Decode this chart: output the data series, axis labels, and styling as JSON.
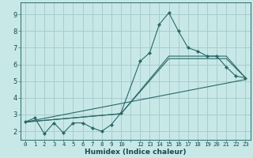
{
  "title": "",
  "xlabel": "Humidex (Indice chaleur)",
  "bg_color": "#c8e8e8",
  "grid_color": "#a8cccc",
  "line_color": "#2a6868",
  "marker_color": "#2a6868",
  "xlim": [
    -0.5,
    23.5
  ],
  "ylim": [
    1.5,
    9.7
  ],
  "xtick_labels": [
    "0",
    "1",
    "2",
    "3",
    "4",
    "5",
    "6",
    "7",
    "8",
    "9",
    "10",
    "1213141516171819202122 23"
  ],
  "ytick_vals": [
    2,
    3,
    4,
    5,
    6,
    7,
    8,
    9
  ],
  "series": [
    {
      "x": [
        0,
        1,
        2,
        3,
        4,
        5,
        6,
        7,
        8,
        9,
        10,
        12,
        13,
        14,
        15,
        16,
        17,
        18,
        19,
        20,
        21,
        22,
        23
      ],
      "y": [
        2.55,
        2.8,
        1.85,
        2.5,
        1.9,
        2.5,
        2.5,
        2.2,
        2.0,
        2.4,
        3.1,
        6.2,
        6.7,
        8.4,
        9.1,
        8.0,
        7.0,
        6.8,
        6.5,
        6.5,
        5.85,
        5.3,
        5.2
      ],
      "marker": true
    },
    {
      "x": [
        0,
        10,
        15,
        21,
        23
      ],
      "y": [
        2.55,
        3.05,
        6.5,
        6.5,
        5.2
      ],
      "marker": false
    },
    {
      "x": [
        0,
        10,
        15,
        21,
        23
      ],
      "y": [
        2.55,
        3.05,
        6.35,
        6.35,
        5.2
      ],
      "marker": false
    },
    {
      "x": [
        0,
        23
      ],
      "y": [
        2.55,
        5.1
      ],
      "marker": false
    }
  ]
}
